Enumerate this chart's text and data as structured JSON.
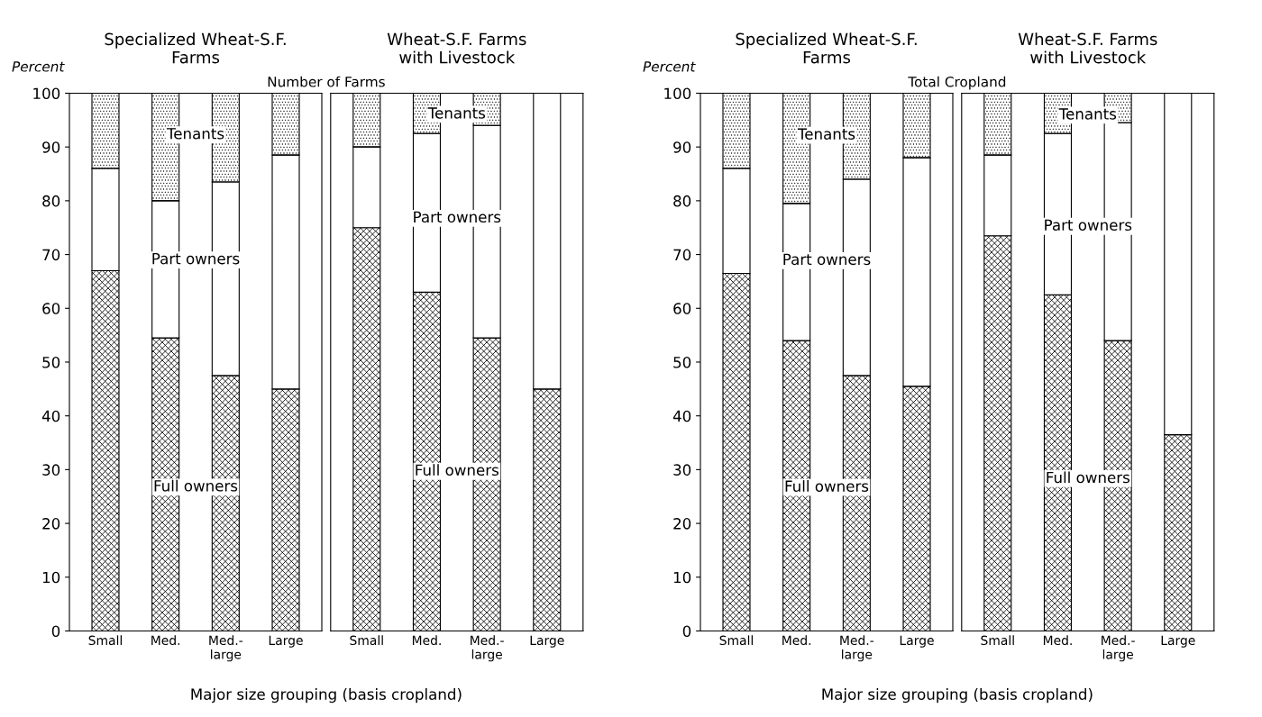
{
  "chart_data": [
    {
      "type": "bar",
      "stacked": true,
      "title": "Specialized Wheat-S.F.\nFarms",
      "subtitle": "Number of Farms",
      "ylabel": "Percent",
      "xlabel": "Major size grouping (basis cropland)",
      "categories": [
        "Small",
        "Med.",
        "Med.-\nlarge",
        "Large"
      ],
      "ylim": [
        0,
        100
      ],
      "yticks": [
        0,
        10,
        20,
        30,
        40,
        50,
        60,
        70,
        80,
        90,
        100
      ],
      "series": [
        {
          "name": "Full owners",
          "color": "#000000",
          "values": [
            67,
            54.5,
            47.5,
            45
          ]
        },
        {
          "name": "Part owners",
          "color": "#ffffff",
          "values": [
            19,
            25.5,
            36,
            43.5
          ]
        },
        {
          "name": "Tenants",
          "color": "#000000",
          "values": [
            14,
            20,
            16.5,
            11.5
          ]
        }
      ]
    },
    {
      "type": "bar",
      "stacked": true,
      "title": "Wheat-S.F. Farms\nwith Livestock",
      "categories": [
        "Small",
        "Med.",
        "Med.-\nlarge",
        "Large"
      ],
      "ylim": [
        0,
        100
      ],
      "yticks": [
        0,
        10,
        20,
        30,
        40,
        50,
        60,
        70,
        80,
        90,
        100
      ],
      "tick_labels": "x",
      "series": [
        {
          "name": "Full owners",
          "color": "#000000",
          "values": [
            75,
            63,
            54.5,
            45
          ]
        },
        {
          "name": "Part owners",
          "color": "#ffffff",
          "values": [
            15,
            29.5,
            39.5,
            55
          ]
        },
        {
          "name": "Tenants",
          "color": "#000000",
          "values": [
            10,
            7.5,
            6,
            0
          ]
        }
      ]
    },
    {
      "type": "bar",
      "stacked": true,
      "title": "Specialized Wheat-S.F.\nFarms",
      "subtitle": "Total Cropland",
      "ylabel": "Percent",
      "xlabel": "Major size grouping (basis cropland)",
      "categories": [
        "Small",
        "Med.",
        "Med.-\nlarge",
        "Large"
      ],
      "ylim": [
        0,
        100
      ],
      "yticks": [
        0,
        10,
        20,
        30,
        40,
        50,
        60,
        70,
        80,
        90,
        100
      ],
      "series": [
        {
          "name": "Full owners",
          "color": "#000000",
          "values": [
            66.5,
            54,
            47.5,
            45.5
          ]
        },
        {
          "name": "Part owners",
          "color": "#ffffff",
          "values": [
            19.5,
            25.5,
            36.5,
            42.5
          ]
        },
        {
          "name": "Tenants",
          "color": "#000000",
          "values": [
            14,
            20.5,
            16,
            12
          ]
        }
      ]
    },
    {
      "type": "bar",
      "stacked": true,
      "title": "Wheat-S.F. Farms\nwith Livestock",
      "categories": [
        "Small",
        "Med.",
        "Med.-\nlarge",
        "Large"
      ],
      "ylim": [
        0,
        100
      ],
      "yticks": [
        0,
        10,
        20,
        30,
        40,
        50,
        60,
        70,
        80,
        90,
        100
      ],
      "tick_labels": "x",
      "series": [
        {
          "name": "Full owners",
          "color": "#000000",
          "values": [
            73.5,
            62.5,
            54,
            36.5
          ]
        },
        {
          "name": "Part owners",
          "color": "#ffffff",
          "values": [
            15,
            30,
            40.5,
            63.5
          ]
        },
        {
          "name": "Tenants",
          "color": "#000000",
          "values": [
            11.5,
            7.5,
            5.5,
            0
          ]
        }
      ]
    }
  ]
}
